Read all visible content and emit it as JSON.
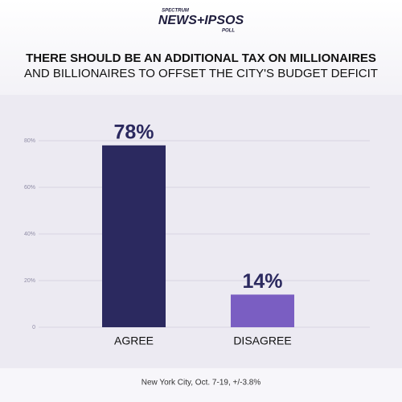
{
  "logo": {
    "top": "SPECTRUM",
    "main": "NEWS+IPSOS",
    "bottom": "POLL"
  },
  "chart_data": {
    "type": "bar",
    "title_lines": [
      "THERE SHOULD BE AN ADDITIONAL TAX ON MILLIONAIRES",
      "AND BILLIONAIRES TO OFFSET THE CITY'S BUDGET DEFICIT"
    ],
    "categories": [
      "AGREE",
      "DISAGREE"
    ],
    "values": [
      78,
      14
    ],
    "value_labels": [
      "78%",
      "14%"
    ],
    "colors": [
      "#2b295f",
      "#7a5ec2"
    ],
    "ylim": [
      0,
      80
    ],
    "yticks": [
      0,
      {
        "value": 20,
        "label": "20%"
      },
      {
        "value": 40,
        "label": "40%"
      },
      {
        "value": 60,
        "label": "60%"
      },
      {
        "value": 80,
        "label": "80%"
      }
    ],
    "grid": true,
    "note": "New York City, Oct. 7-19, +/-3.8%"
  }
}
